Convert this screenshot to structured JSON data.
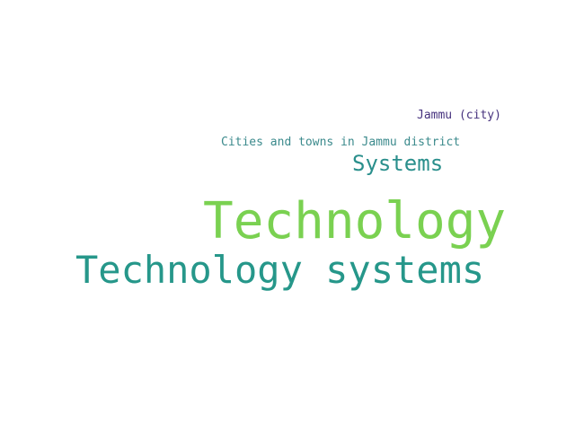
{
  "words": [
    {
      "text": "Jammu (city)",
      "color": "#46327e"
    },
    {
      "text": "Cities and towns in Jammu district",
      "color": "#3b8a8c"
    },
    {
      "text": "Systems",
      "color": "#2a8f8c"
    },
    {
      "text": "Technology",
      "color": "#7ad151"
    },
    {
      "text": "Technology systems",
      "color": "#26978a"
    }
  ]
}
